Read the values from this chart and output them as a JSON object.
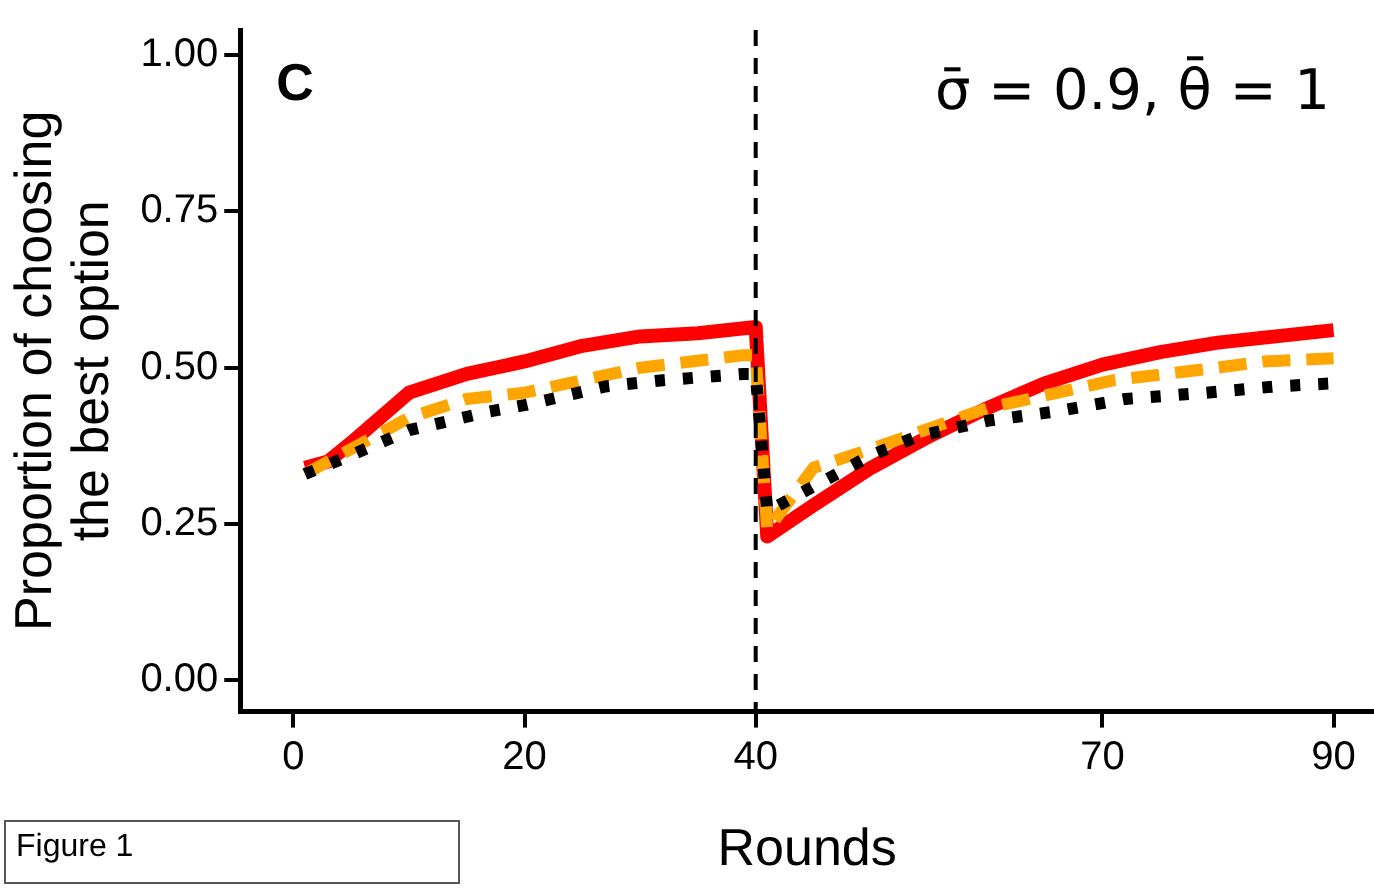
{
  "chart_data": {
    "type": "line",
    "xlabel": "Rounds",
    "ylabel": "Proportion of choosing\nthe best option",
    "xlim": [
      -4.6,
      93.5
    ],
    "xticks": [
      0,
      20,
      40,
      70,
      90
    ],
    "ylim": [
      -0.05,
      1.04
    ],
    "yticks": [
      {
        "value": 0,
        "label": "0.00"
      },
      {
        "value": 0.25,
        "label": "0.25"
      },
      {
        "value": 0.5,
        "label": "0.50"
      },
      {
        "value": 0.75,
        "label": "0.75"
      },
      {
        "value": 1,
        "label": "1.00"
      }
    ],
    "grid": false,
    "legend": false,
    "ref_lines": [
      {
        "axis": "x",
        "value": 40,
        "line_style": "dashed",
        "color": "#000000"
      }
    ],
    "annotations": [
      "C",
      "σ̄ = 0.9, θ̄ = 1",
      "Figure 1"
    ],
    "series": [
      {
        "color": "#000000",
        "line_style": "dotted",
        "x": [
          1,
          5,
          10,
          17,
          20,
          27,
          32,
          39,
          40,
          41,
          43,
          50,
          54,
          60,
          66,
          72,
          79,
          85,
          90
        ],
        "values": [
          0.33,
          0.36,
          0.4,
          0.43,
          0.44,
          0.47,
          0.48,
          0.49,
          0.49,
          0.27,
          0.29,
          0.36,
          0.39,
          0.415,
          0.43,
          0.45,
          0.46,
          0.47,
          0.475
        ]
      },
      {
        "color": "#ffa500",
        "line_style": "dashed",
        "x": [
          1,
          5,
          10,
          15,
          20,
          30,
          39,
          40,
          41,
          45,
          50,
          60,
          71,
          80,
          84,
          90
        ],
        "values": [
          0.33,
          0.37,
          0.42,
          0.45,
          0.46,
          0.5,
          0.52,
          0.52,
          0.24,
          0.34,
          0.37,
          0.435,
          0.48,
          0.5,
          0.51,
          0.515
        ]
      },
      {
        "color": "#ff0000",
        "line_style": "solid",
        "x": [
          1,
          3,
          5,
          10,
          15,
          20,
          25,
          30,
          35,
          40,
          41,
          45,
          50,
          55,
          60,
          65,
          70,
          75,
          80,
          85,
          90
        ],
        "values": [
          0.34,
          0.35,
          0.38,
          0.46,
          0.49,
          0.51,
          0.535,
          0.55,
          0.555,
          0.565,
          0.23,
          0.28,
          0.34,
          0.39,
          0.435,
          0.475,
          0.505,
          0.525,
          0.54,
          0.55,
          0.56
        ]
      }
    ]
  }
}
